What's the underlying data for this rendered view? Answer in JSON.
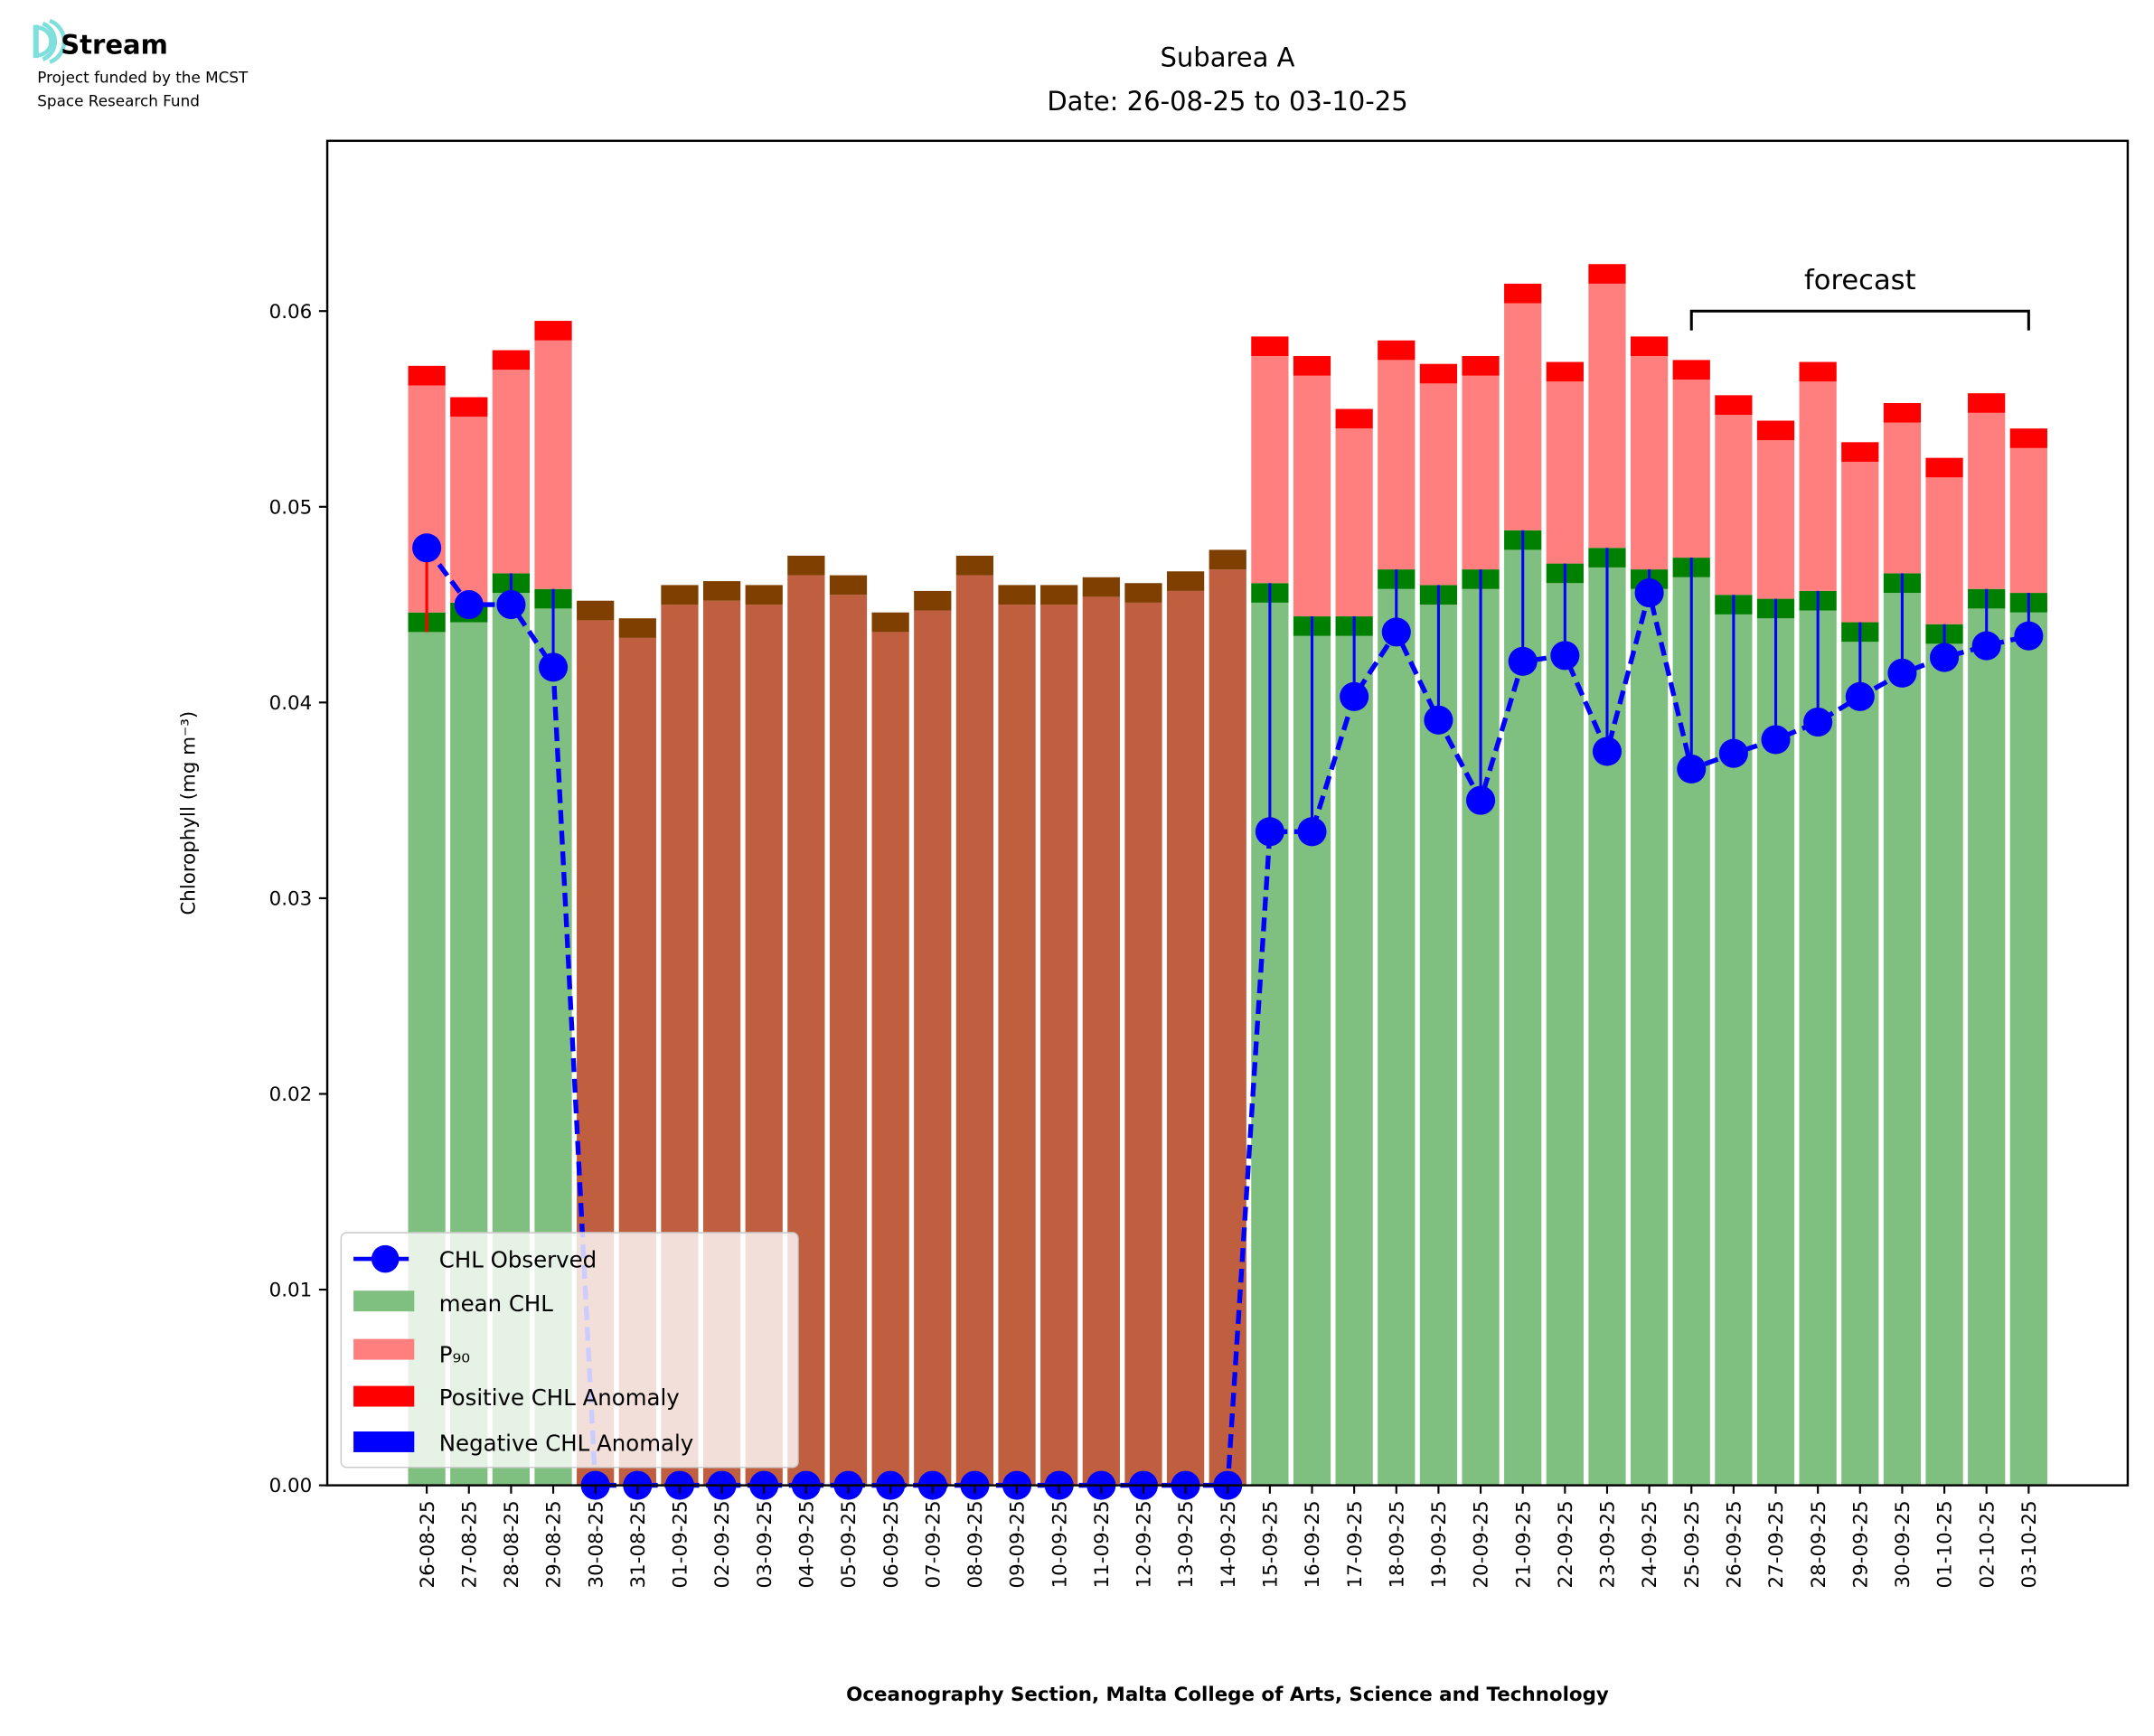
{
  "logo": {
    "name": "Stream",
    "line1": "Project funded by the MCST",
    "line2": "Space Research Fund"
  },
  "colors": {
    "mean": "#7fbf7f",
    "mean_band": "#008000",
    "p90": "#ff7f7f",
    "positive": "#ff0000",
    "negative": "#0000ff",
    "missing": "#c05f40",
    "missing_cap": "#7f3f00",
    "observed": "#0000ff"
  },
  "chart_data": {
    "type": "bar",
    "title": "Subarea A",
    "subtitle": "Date: 26-08-25 to 03-10-25",
    "xlabel": "Oceanography Section, Malta College of Arts, Science and Technology",
    "ylabel": "Chlorophyll (mg m⁻³)",
    "ylim": [
      0,
      0.0687
    ],
    "yticks": [
      "0.00",
      "0.01",
      "0.02",
      "0.03",
      "0.04",
      "0.05",
      "0.06"
    ],
    "ytick_values": [
      0,
      0.01,
      0.02,
      0.03,
      0.04,
      0.05,
      0.06
    ],
    "grid": false,
    "legend_position": "lower-left",
    "legend": [
      "CHL Observed",
      "mean CHL",
      "P₉₀",
      "Positive CHL Anomaly",
      "Negative CHL Anomaly"
    ],
    "annotation": {
      "text": "forecast",
      "from": "25-09-25",
      "to": "03-10-25",
      "y": 0.06
    },
    "categories": [
      "26-08-25",
      "27-08-25",
      "28-08-25",
      "29-08-25",
      "30-08-25",
      "31-08-25",
      "01-09-25",
      "02-09-25",
      "03-09-25",
      "04-09-25",
      "05-09-25",
      "06-09-25",
      "07-09-25",
      "08-09-25",
      "09-09-25",
      "10-09-25",
      "11-09-25",
      "12-09-25",
      "13-09-25",
      "14-09-25",
      "15-09-25",
      "16-09-25",
      "17-09-25",
      "18-09-25",
      "19-09-25",
      "20-09-25",
      "21-09-25",
      "22-09-25",
      "23-09-25",
      "24-09-25",
      "25-09-25",
      "26-09-25",
      "27-09-25",
      "28-09-25",
      "29-09-25",
      "30-09-25",
      "01-10-25",
      "02-10-25",
      "03-10-25"
    ],
    "series": [
      {
        "name": "mean CHL",
        "values": [
          0.0446,
          0.0451,
          0.0466,
          0.0458,
          0.0452,
          0.0443,
          0.046,
          0.0462,
          0.046,
          0.0475,
          0.0465,
          0.0446,
          0.0457,
          0.0475,
          0.046,
          0.046,
          0.0464,
          0.0461,
          0.0467,
          0.0478,
          0.0461,
          0.0444,
          0.0444,
          0.0468,
          0.046,
          0.0468,
          0.0488,
          0.0471,
          0.0479,
          0.0468,
          0.0474,
          0.0455,
          0.0453,
          0.0457,
          0.0441,
          0.0466,
          0.044,
          0.0458,
          0.0456
        ]
      },
      {
        "name": "P90",
        "values": [
          0.0572,
          0.0556,
          0.058,
          0.0595,
          null,
          null,
          null,
          null,
          null,
          null,
          null,
          null,
          null,
          null,
          null,
          null,
          null,
          null,
          null,
          null,
          0.0587,
          0.0577,
          0.055,
          0.0585,
          0.0573,
          0.0577,
          0.0614,
          0.0574,
          0.0624,
          0.0587,
          0.0575,
          0.0557,
          0.0544,
          0.0574,
          0.0533,
          0.0553,
          0.0525,
          0.0558,
          0.054
        ]
      },
      {
        "name": "CHL Observed",
        "values": [
          0.0479,
          0.045,
          0.045,
          0.0418,
          0,
          0,
          0,
          0,
          0,
          0,
          0,
          0,
          0,
          0,
          0,
          0,
          0,
          0,
          0,
          0,
          0.0334,
          0.0334,
          0.0403,
          0.0436,
          0.0391,
          0.035,
          0.0421,
          0.0424,
          0.0375,
          0.0456,
          0.0366,
          0.0374,
          0.0381,
          0.039,
          0.0403,
          0.0415,
          0.0423,
          0.0429,
          0.0434
        ]
      }
    ]
  }
}
